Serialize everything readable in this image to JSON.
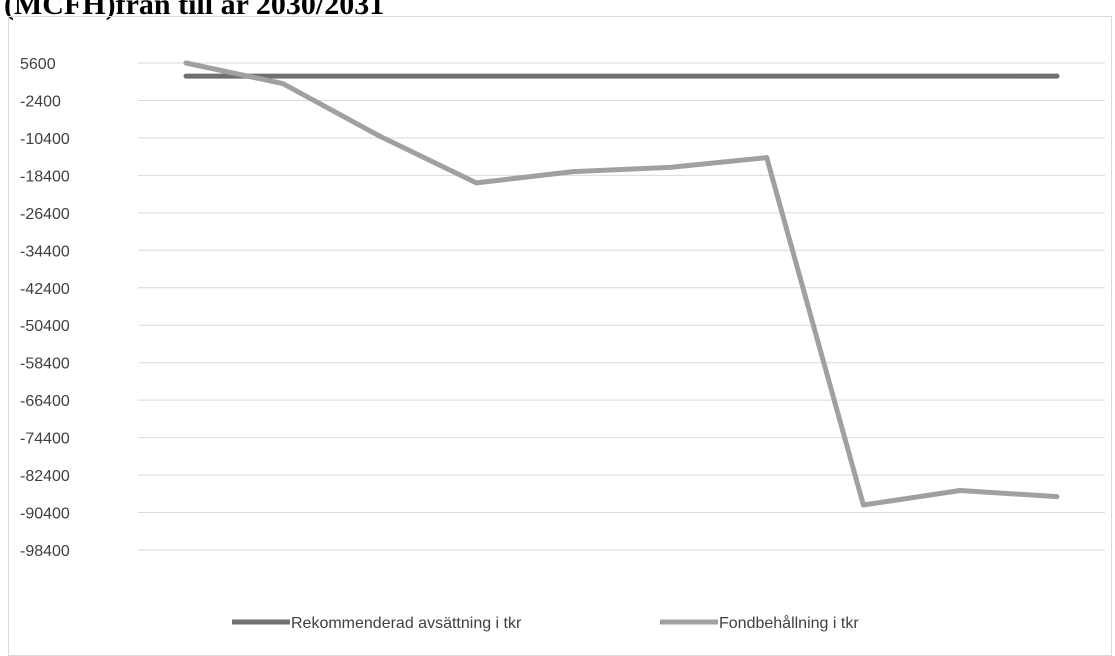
{
  "title_fragment": "(MCFH)från till år 2030/2031",
  "chart_data": {
    "type": "line",
    "title": "(MCFH)från till år 2030/2031",
    "xlabel": "",
    "ylabel": "",
    "x": [
      1,
      2,
      3,
      4,
      5,
      6,
      7,
      8,
      9,
      10
    ],
    "ylim": [
      -98400,
      5600
    ],
    "y_ticks": [
      "5600",
      "-2400",
      "-10400",
      "-18400",
      "-26400",
      "-34400",
      "-42400",
      "-50400",
      "-58400",
      "-66400",
      "-74400",
      "-82400",
      "-90400",
      "-98400"
    ],
    "grid": true,
    "legend_position": "bottom",
    "series": [
      {
        "name": "Rekommenderad avsättning i tkr",
        "color": "#707070",
        "values": [
          2800,
          2800,
          2800,
          2800,
          2800,
          2800,
          2800,
          2800,
          2800,
          2800
        ]
      },
      {
        "name": "Fondbehållning i tkr",
        "color": "#a0a0a0",
        "values": [
          5600,
          1200,
          -10000,
          -20000,
          -17600,
          -16700,
          -14600,
          -88800,
          -85700,
          -87000
        ]
      }
    ]
  }
}
